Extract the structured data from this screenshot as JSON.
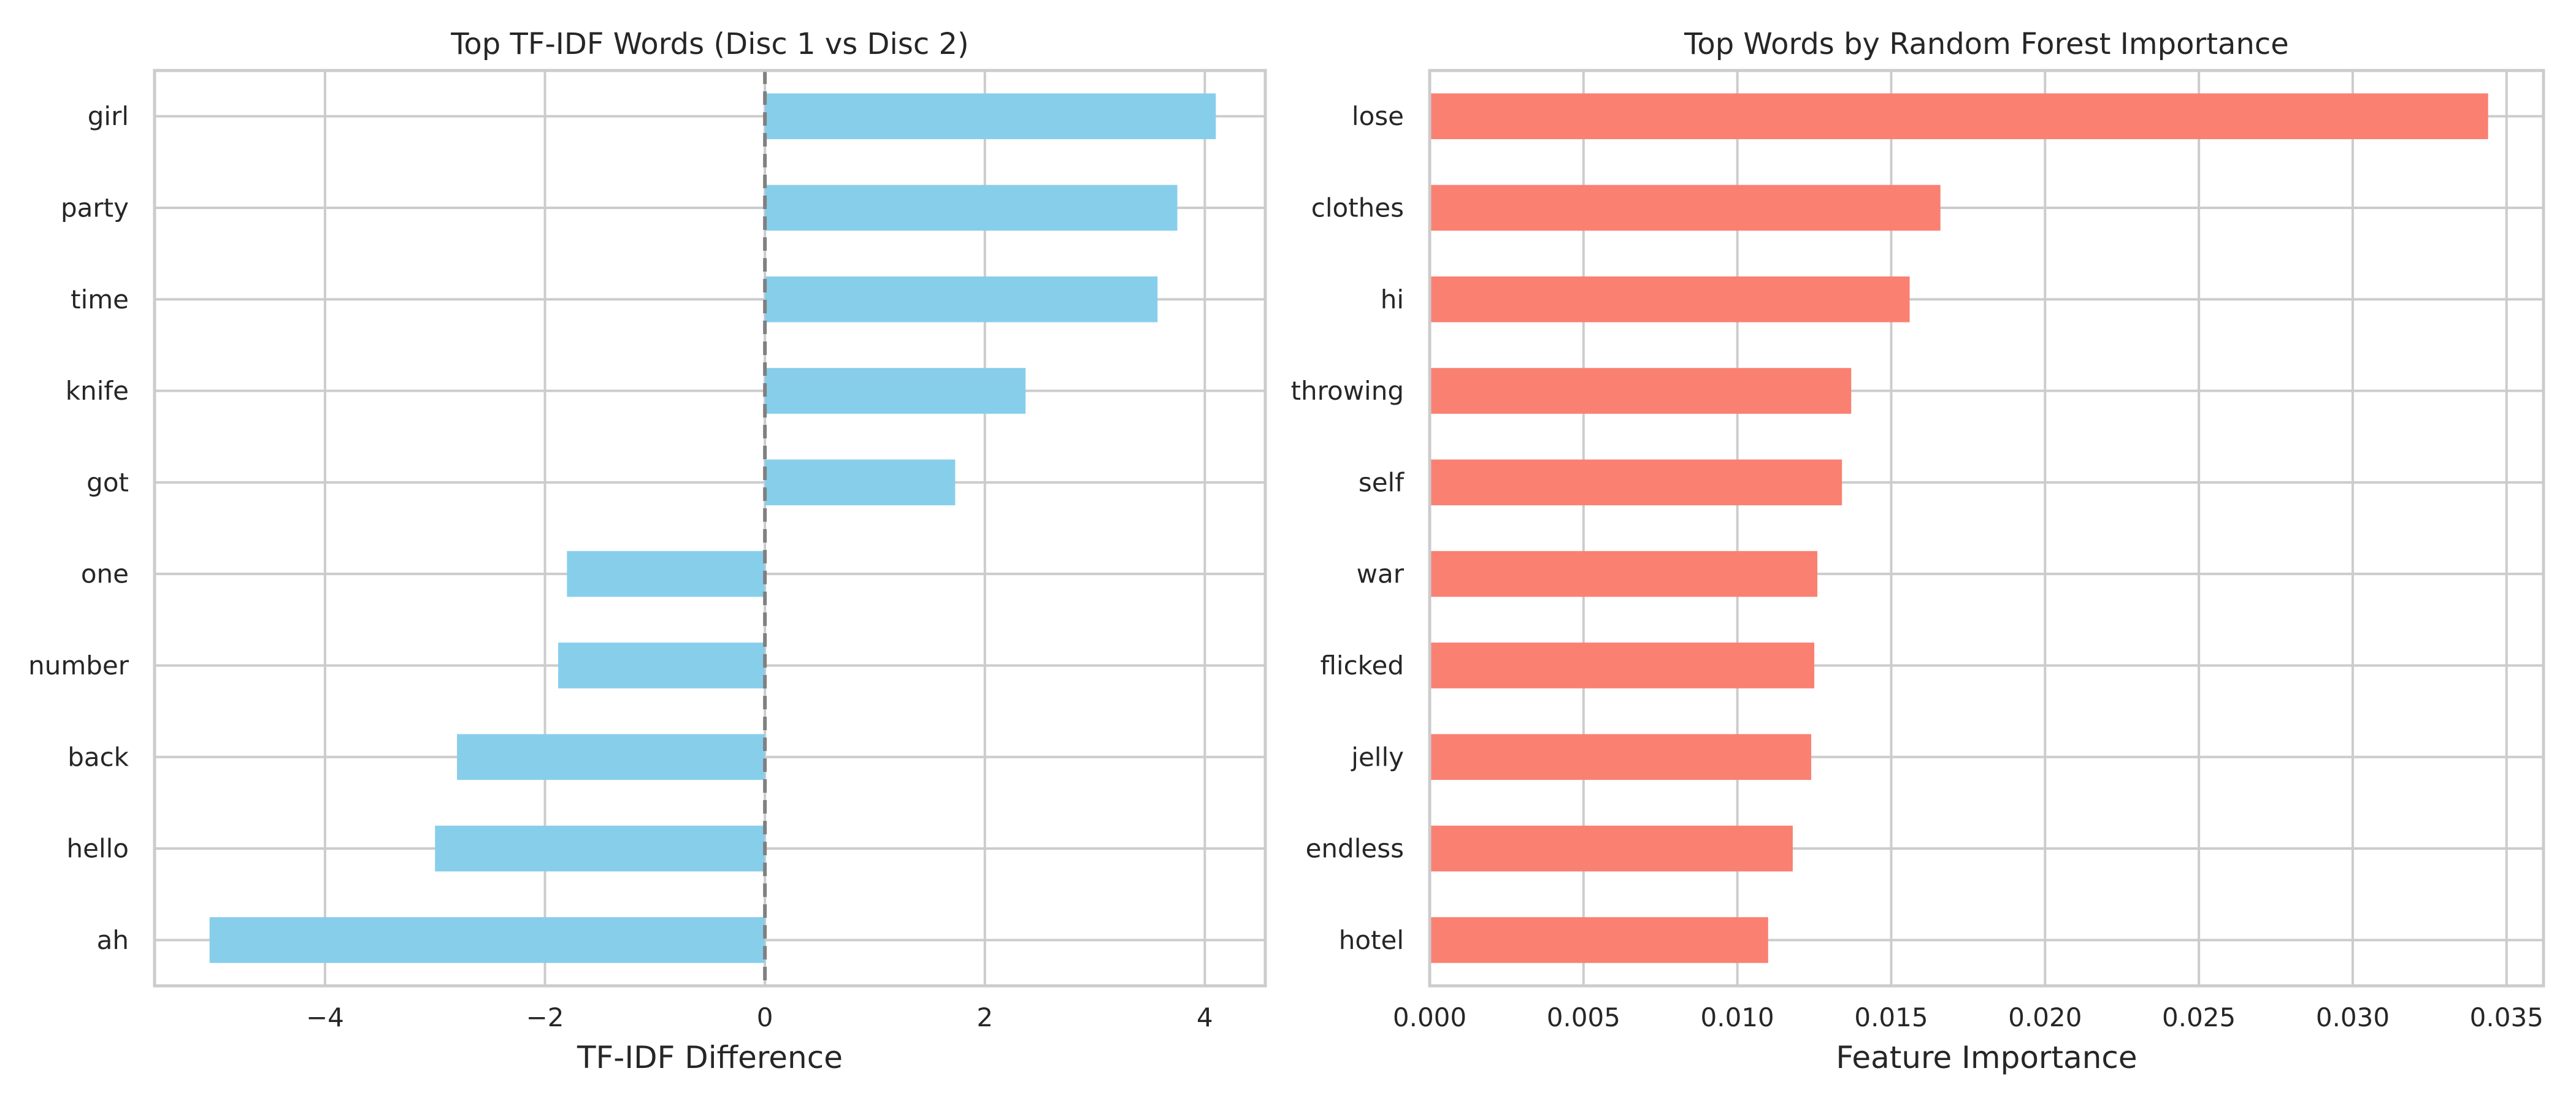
{
  "chart_data": [
    {
      "type": "bar",
      "orientation": "horizontal",
      "title": "Top TF-IDF Words (Disc 1 vs Disc 2)",
      "xlabel": "TF-IDF Difference",
      "ylabel": "",
      "xlim": [
        -5.55,
        4.55
      ],
      "xticks": [
        -4,
        -2,
        0,
        2,
        4
      ],
      "xtick_labels": [
        "−4",
        "−2",
        "0",
        "2",
        "4"
      ],
      "grid": true,
      "zero_line": "dashed",
      "color": "#87CEEB",
      "categories": [
        "girl",
        "party",
        "time",
        "knife",
        "got",
        "one",
        "number",
        "back",
        "hello",
        "ah"
      ],
      "values": [
        4.1,
        3.75,
        3.57,
        2.37,
        1.73,
        -1.8,
        -1.88,
        -2.8,
        -3.0,
        -5.05
      ]
    },
    {
      "type": "bar",
      "orientation": "horizontal",
      "title": "Top Words by Random Forest Importance",
      "xlabel": "Feature Importance",
      "ylabel": "",
      "xlim": [
        0,
        0.0362
      ],
      "xticks": [
        0,
        0.005,
        0.01,
        0.015,
        0.02,
        0.025,
        0.03,
        0.035
      ],
      "xtick_labels": [
        "0.000",
        "0.005",
        "0.010",
        "0.015",
        "0.020",
        "0.025",
        "0.030",
        "0.035"
      ],
      "grid": true,
      "color": "#FA8072",
      "categories": [
        "lose",
        "clothes",
        "hi",
        "throwing",
        "self",
        "war",
        "flicked",
        "jelly",
        "endless",
        "hotel"
      ],
      "values": [
        0.0344,
        0.0166,
        0.0156,
        0.0137,
        0.0134,
        0.0126,
        0.0125,
        0.0124,
        0.0118,
        0.011
      ]
    }
  ]
}
